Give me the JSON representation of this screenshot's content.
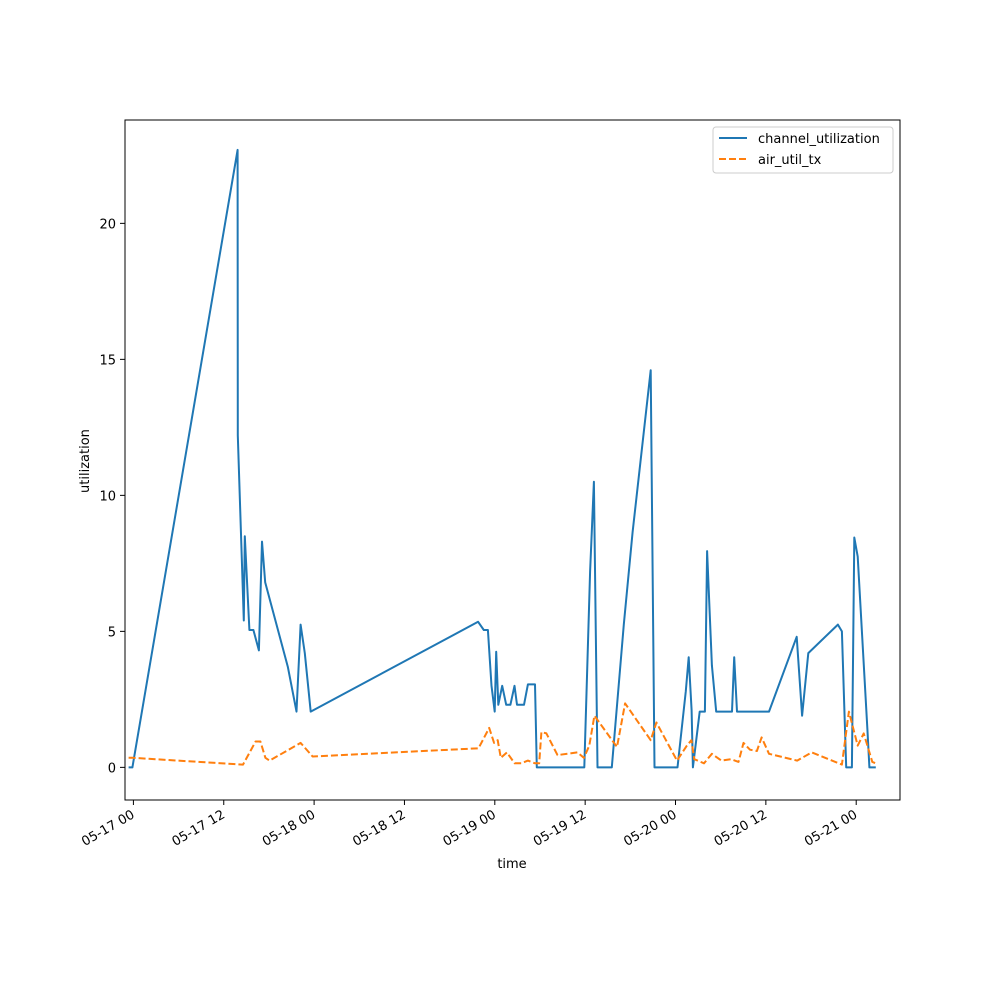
{
  "chart_data": {
    "type": "line",
    "title": "",
    "xlabel": "time",
    "ylabel": "utilization",
    "x_tick_labels": [
      "05-17 00",
      "05-17 12",
      "05-18 00",
      "05-18 12",
      "05-19 00",
      "05-19 12",
      "05-20 00",
      "05-20 12",
      "05-21 00"
    ],
    "y_ticks": [
      0,
      5,
      10,
      15,
      20
    ],
    "xlim": [
      "2024-05-16T22:53",
      "2024-05-21T05:49"
    ],
    "ylim": [
      -1.2,
      23.8
    ],
    "grid": false,
    "legend_position": "top-right",
    "series": [
      {
        "name": "channel_utilization",
        "color": "#1f77b4",
        "linestyle": "solid",
        "points": [
          [
            "2024-05-16T23:22",
            0.0
          ],
          [
            "2024-05-16T23:52",
            0.0
          ],
          [
            "2024-05-17T13:50",
            22.7
          ],
          [
            "2024-05-17T13:52",
            12.2
          ],
          [
            "2024-05-17T14:40",
            5.4
          ],
          [
            "2024-05-17T14:48",
            8.5
          ],
          [
            "2024-05-17T15:24",
            5.05
          ],
          [
            "2024-05-17T15:56",
            5.05
          ],
          [
            "2024-05-17T16:40",
            4.3
          ],
          [
            "2024-05-17T17:05",
            8.3
          ],
          [
            "2024-05-17T17:30",
            6.8
          ],
          [
            "2024-05-17T20:30",
            3.7
          ],
          [
            "2024-05-17T21:40",
            2.05
          ],
          [
            "2024-05-17T22:12",
            5.25
          ],
          [
            "2024-05-17T22:46",
            4.2
          ],
          [
            "2024-05-17T23:33",
            2.05
          ],
          [
            "2024-05-18T21:47",
            5.35
          ],
          [
            "2024-05-18T22:32",
            5.05
          ],
          [
            "2024-05-18T23:05",
            5.05
          ],
          [
            "2024-05-18T23:34",
            3.0
          ],
          [
            "2024-05-18T23:59",
            2.05
          ],
          [
            "2024-05-19T00:11",
            4.25
          ],
          [
            "2024-05-19T00:28",
            2.3
          ],
          [
            "2024-05-19T00:59",
            3.0
          ],
          [
            "2024-05-19T01:31",
            2.3
          ],
          [
            "2024-05-19T02:04",
            2.3
          ],
          [
            "2024-05-19T02:37",
            3.0
          ],
          [
            "2024-05-19T02:57",
            2.3
          ],
          [
            "2024-05-19T03:53",
            2.3
          ],
          [
            "2024-05-19T04:24",
            3.05
          ],
          [
            "2024-05-19T05:20",
            3.05
          ],
          [
            "2024-05-19T05:35",
            0.0
          ],
          [
            "2024-05-19T11:53",
            0.0
          ],
          [
            "2024-05-19T12:39",
            7.2
          ],
          [
            "2024-05-19T13:10",
            10.5
          ],
          [
            "2024-05-19T13:38",
            0.0
          ],
          [
            "2024-05-19T15:32",
            0.0
          ],
          [
            "2024-05-19T17:08",
            5.25
          ],
          [
            "2024-05-19T18:18",
            8.65
          ],
          [
            "2024-05-19T20:42",
            14.6
          ],
          [
            "2024-05-19T21:13",
            0.0
          ],
          [
            "2024-05-20T00:16",
            0.0
          ],
          [
            "2024-05-20T01:22",
            2.8
          ],
          [
            "2024-05-20T01:45",
            4.05
          ],
          [
            "2024-05-20T02:08",
            2.1
          ],
          [
            "2024-05-20T02:19",
            0.0
          ],
          [
            "2024-05-20T03:13",
            2.05
          ],
          [
            "2024-05-20T03:54",
            2.05
          ],
          [
            "2024-05-20T04:12",
            7.95
          ],
          [
            "2024-05-20T04:50",
            3.75
          ],
          [
            "2024-05-20T05:24",
            2.05
          ],
          [
            "2024-05-20T07:30",
            2.05
          ],
          [
            "2024-05-20T07:48",
            4.05
          ],
          [
            "2024-05-20T08:10",
            2.05
          ],
          [
            "2024-05-20T12:25",
            2.05
          ],
          [
            "2024-05-20T16:06",
            4.8
          ],
          [
            "2024-05-20T16:49",
            1.9
          ],
          [
            "2024-05-20T17:38",
            4.2
          ],
          [
            "2024-05-20T21:34",
            5.25
          ],
          [
            "2024-05-20T22:06",
            5.0
          ],
          [
            "2024-05-20T22:40",
            0.0
          ],
          [
            "2024-05-20T23:26",
            0.0
          ],
          [
            "2024-05-20T23:45",
            8.45
          ],
          [
            "2024-05-21T00:12",
            7.75
          ],
          [
            "2024-05-21T01:29",
            1.4
          ],
          [
            "2024-05-21T01:45",
            0.0
          ],
          [
            "2024-05-21T02:36",
            0.0
          ]
        ]
      },
      {
        "name": "air_util_tx",
        "color": "#ff7f0e",
        "linestyle": "dashed",
        "points": [
          [
            "2024-05-16T23:22",
            0.35
          ],
          [
            "2024-05-16T23:52",
            0.35
          ],
          [
            "2024-05-17T14:33",
            0.1
          ],
          [
            "2024-05-17T16:14",
            0.95
          ],
          [
            "2024-05-17T16:52",
            0.95
          ],
          [
            "2024-05-17T17:32",
            0.35
          ],
          [
            "2024-05-17T18:05",
            0.25
          ],
          [
            "2024-05-17T22:12",
            0.9
          ],
          [
            "2024-05-17T23:48",
            0.4
          ],
          [
            "2024-05-18T21:50",
            0.7
          ],
          [
            "2024-05-18T23:15",
            1.45
          ],
          [
            "2024-05-18T23:54",
            0.9
          ],
          [
            "2024-05-19T00:23",
            1.0
          ],
          [
            "2024-05-19T00:48",
            0.35
          ],
          [
            "2024-05-19T01:36",
            0.55
          ],
          [
            "2024-05-19T02:38",
            0.15
          ],
          [
            "2024-05-19T03:30",
            0.15
          ],
          [
            "2024-05-19T04:24",
            0.25
          ],
          [
            "2024-05-19T05:20",
            0.15
          ],
          [
            "2024-05-19T05:54",
            0.15
          ],
          [
            "2024-05-19T06:11",
            1.3
          ],
          [
            "2024-05-19T06:51",
            1.25
          ],
          [
            "2024-05-19T08:20",
            0.45
          ],
          [
            "2024-05-19T10:58",
            0.55
          ],
          [
            "2024-05-19T11:50",
            0.35
          ],
          [
            "2024-05-19T12:33",
            0.8
          ],
          [
            "2024-05-19T13:14",
            1.9
          ],
          [
            "2024-05-19T16:14",
            0.75
          ],
          [
            "2024-05-19T17:18",
            2.35
          ],
          [
            "2024-05-19T20:42",
            1.0
          ],
          [
            "2024-05-19T21:28",
            1.65
          ],
          [
            "2024-05-20T00:12",
            0.25
          ],
          [
            "2024-05-20T01:31",
            0.8
          ],
          [
            "2024-05-20T02:07",
            1.0
          ],
          [
            "2024-05-20T02:30",
            0.3
          ],
          [
            "2024-05-20T03:47",
            0.15
          ],
          [
            "2024-05-20T04:50",
            0.5
          ],
          [
            "2024-05-20T06:06",
            0.25
          ],
          [
            "2024-05-20T07:22",
            0.3
          ],
          [
            "2024-05-20T08:22",
            0.2
          ],
          [
            "2024-05-20T09:02",
            0.9
          ],
          [
            "2024-05-20T09:54",
            0.65
          ],
          [
            "2024-05-20T10:49",
            0.6
          ],
          [
            "2024-05-20T11:26",
            1.1
          ],
          [
            "2024-05-20T12:25",
            0.5
          ],
          [
            "2024-05-20T16:10",
            0.25
          ],
          [
            "2024-05-20T18:05",
            0.55
          ],
          [
            "2024-05-20T22:06",
            0.1
          ],
          [
            "2024-05-20T23:02",
            2.05
          ],
          [
            "2024-05-21T00:12",
            0.8
          ],
          [
            "2024-05-21T01:00",
            1.25
          ],
          [
            "2024-05-21T02:08",
            0.2
          ],
          [
            "2024-05-21T02:36",
            0.15
          ]
        ]
      }
    ]
  }
}
